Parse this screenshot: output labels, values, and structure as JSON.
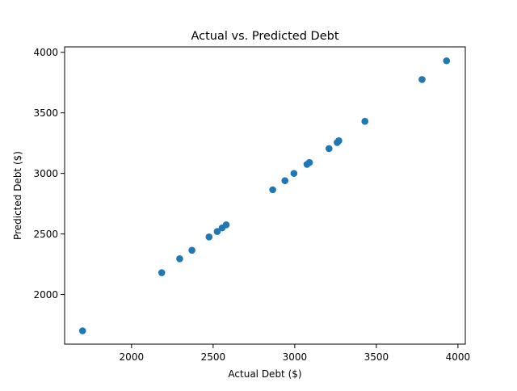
{
  "chart_data": {
    "type": "scatter",
    "title": "Actual vs. Predicted Debt",
    "xlabel": "Actual Debt ($)",
    "ylabel": "Predicted Debt ($)",
    "xlim": [
      1590,
      4045
    ],
    "ylim": [
      1590,
      4045
    ],
    "xticks": [
      2000,
      2500,
      3000,
      3500,
      4000
    ],
    "yticks": [
      2000,
      2500,
      3000,
      3500,
      4000
    ],
    "grid": false,
    "marker_color": "#1f77b4",
    "points": [
      {
        "x": 1700,
        "y": 1700
      },
      {
        "x": 2185,
        "y": 2180
      },
      {
        "x": 2295,
        "y": 2295
      },
      {
        "x": 2370,
        "y": 2365
      },
      {
        "x": 2475,
        "y": 2475
      },
      {
        "x": 2525,
        "y": 2520
      },
      {
        "x": 2555,
        "y": 2550
      },
      {
        "x": 2580,
        "y": 2575
      },
      {
        "x": 2865,
        "y": 2865
      },
      {
        "x": 2940,
        "y": 2940
      },
      {
        "x": 2995,
        "y": 3000
      },
      {
        "x": 3075,
        "y": 3075
      },
      {
        "x": 3090,
        "y": 3090
      },
      {
        "x": 3210,
        "y": 3205
      },
      {
        "x": 3260,
        "y": 3255
      },
      {
        "x": 3270,
        "y": 3270
      },
      {
        "x": 3430,
        "y": 3430
      },
      {
        "x": 3780,
        "y": 3775
      },
      {
        "x": 3930,
        "y": 3930
      }
    ]
  }
}
